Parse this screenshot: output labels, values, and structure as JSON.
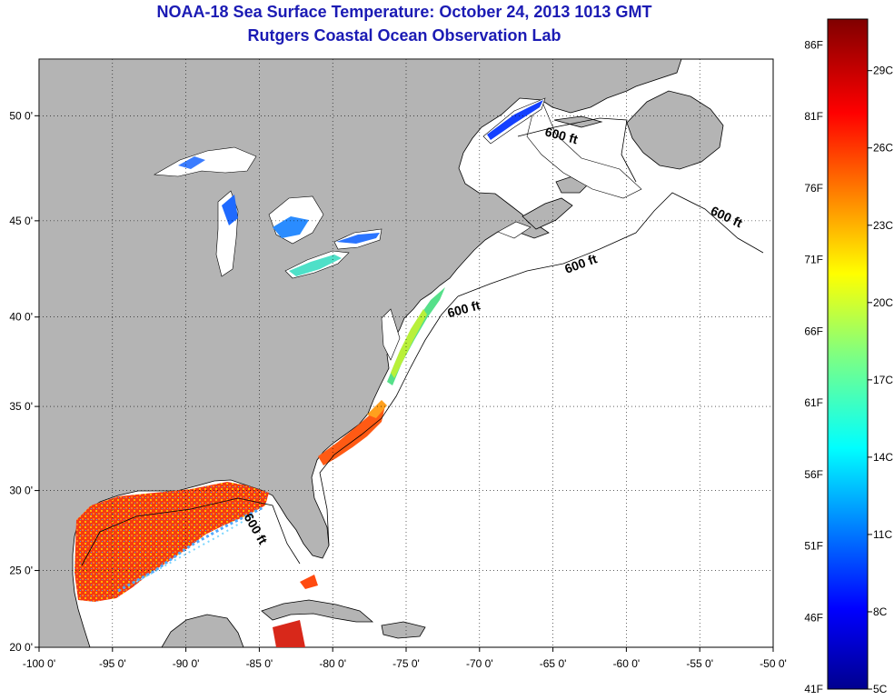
{
  "title": "NOAA-18 Sea Surface Temperature:  October 24, 2013 1013 GMT",
  "subtitle": "Rutgers Coastal Ocean Observation Lab",
  "map": {
    "lon_range": [
      -100,
      -50
    ],
    "lat_range": [
      20,
      52.5
    ],
    "lon_ticks": [
      {
        "value": -100,
        "label": "-100 0'"
      },
      {
        "value": -95,
        "label": "-95 0'"
      },
      {
        "value": -90,
        "label": "-90 0'"
      },
      {
        "value": -85,
        "label": "-85 0'"
      },
      {
        "value": -80,
        "label": "-80 0'"
      },
      {
        "value": -75,
        "label": "-75 0'"
      },
      {
        "value": -70,
        "label": "-70 0'"
      },
      {
        "value": -65,
        "label": "-65 0'"
      },
      {
        "value": -60,
        "label": "-60 0'"
      },
      {
        "value": -55,
        "label": "-55 0'"
      },
      {
        "value": -50,
        "label": "-50 0'"
      }
    ],
    "lat_ticks": [
      {
        "value": 20,
        "label": "20 0'"
      },
      {
        "value": 25,
        "label": "25 0'"
      },
      {
        "value": 30,
        "label": "30 0'"
      },
      {
        "value": 35,
        "label": "35 0'"
      },
      {
        "value": 40,
        "label": "40 0'"
      },
      {
        "value": 45,
        "label": "45 0'"
      },
      {
        "value": 50,
        "label": "50 0'"
      }
    ],
    "grid": "dotted",
    "land_color": "#b4b4b4",
    "ocean_color": "#ffffff",
    "isobath_labels": [
      {
        "text": "600 ft",
        "lon": -64.5,
        "lat": 48.9
      },
      {
        "text": "600 ft",
        "lon": -53.3,
        "lat": 45.0
      },
      {
        "text": "600 ft",
        "lon": -63.0,
        "lat": 42.6
      },
      {
        "text": "600 ft",
        "lon": -71.0,
        "lat": 40.2
      },
      {
        "text": "600 ft",
        "lon": -85.5,
        "lat": 27.5
      }
    ]
  },
  "colorbar": {
    "min_c": 5,
    "max_c": 31,
    "f_labels": [
      {
        "value": 86,
        "label": "86F"
      },
      {
        "value": 81,
        "label": "81F"
      },
      {
        "value": 76,
        "label": "76F"
      },
      {
        "value": 71,
        "label": "71F"
      },
      {
        "value": 66,
        "label": "66F"
      },
      {
        "value": 61,
        "label": "61F"
      },
      {
        "value": 56,
        "label": "56F"
      },
      {
        "value": 51,
        "label": "51F"
      },
      {
        "value": 46,
        "label": "46F"
      },
      {
        "value": 41,
        "label": "41F"
      }
    ],
    "c_labels": [
      {
        "value": 29,
        "label": "29C"
      },
      {
        "value": 26,
        "label": "26C"
      },
      {
        "value": 23,
        "label": "23C"
      },
      {
        "value": 20,
        "label": "20C"
      },
      {
        "value": 17,
        "label": "17C"
      },
      {
        "value": 14,
        "label": "14C"
      },
      {
        "value": 11,
        "label": "11C"
      },
      {
        "value": 8,
        "label": "8C"
      },
      {
        "value": 5,
        "label": "5C"
      }
    ]
  }
}
